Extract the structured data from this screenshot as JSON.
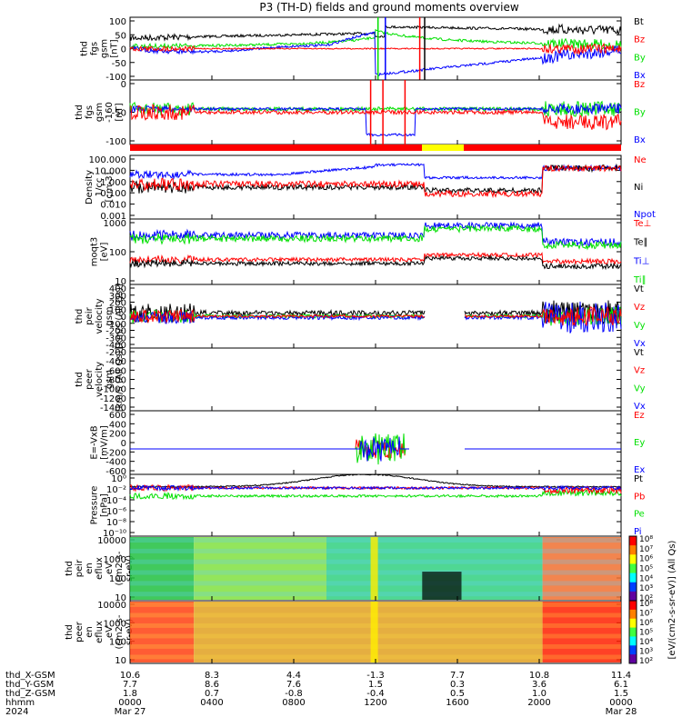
{
  "chart_data": {
    "type": "line",
    "title": "P3 (TH-D) fields and ground moments overview",
    "colors": {
      "black": "#000000",
      "red": "#ff0000",
      "green": "#00e000",
      "blue": "#0000ff",
      "yellow": "#ffff00"
    },
    "x_ticks": [
      "0000",
      "0400",
      "0800",
      "1200",
      "1600",
      "2000",
      "0000"
    ],
    "x_dates": [
      "Mar 27",
      "Mar 28"
    ],
    "row_labels": [
      "thd_X-GSM",
      "thd_Y-GSM",
      "thd_Z-GSM",
      "hhmm",
      "2024"
    ],
    "row_values": [
      [
        "10.6",
        "8.3",
        "4.4",
        "-1.3",
        "7.7",
        "10.8",
        "11.4"
      ],
      [
        "7.7",
        "8.6",
        "7.6",
        "1.5",
        "0.3",
        "3.6",
        "6.1"
      ],
      [
        "1.8",
        "0.7",
        "-0.8",
        "-0.4",
        "0.5",
        "1.0",
        "1.5"
      ]
    ],
    "panels": [
      {
        "ylabel": [
          "thd",
          "fgs",
          "gsm",
          "[nT]"
        ],
        "yticks": [
          "100",
          "50",
          "0",
          "-50",
          "-100"
        ],
        "ylim": [
          -100,
          100
        ],
        "legend": [
          {
            "text": "Bt",
            "color": "black"
          },
          {
            "text": "Bz",
            "color": "red"
          },
          {
            "text": "By",
            "color": "green"
          },
          {
            "text": "Bx",
            "color": "blue"
          }
        ]
      },
      {
        "ylabel": [
          "thd",
          "fgs",
          "gsm",
          "-160",
          "[nT]"
        ],
        "yticks": [
          "0",
          "-50",
          "-100"
        ],
        "ylim": [
          -130,
          30
        ],
        "legend": [
          {
            "text": "Bz",
            "color": "red"
          },
          {
            "text": "By",
            "color": "green"
          },
          {
            "text": "Bx",
            "color": "blue"
          }
        ]
      },
      {
        "ylabel": [
          "Density",
          "1/cc",
          "[cm-3]"
        ],
        "yticks": [
          "100.000",
          "10.000",
          "1.000",
          "0.100",
          "0.010",
          "0.001"
        ],
        "ylim": [
          0.0005,
          300
        ],
        "log": true,
        "legend": [
          {
            "text": "Ne",
            "color": "red"
          },
          {
            "text": "Ni",
            "color": "black"
          },
          {
            "text": "Npot",
            "color": "blue"
          }
        ]
      },
      {
        "ylabel": [
          "moqt3",
          "[eV]"
        ],
        "yticks": [
          "1000",
          "100",
          "10"
        ],
        "ylim": [
          5,
          5000
        ],
        "log": true,
        "legend": [
          {
            "text": "Te⊥",
            "color": "red"
          },
          {
            "text": "Te∥",
            "color": "black"
          },
          {
            "text": "Ti⊥",
            "color": "blue"
          },
          {
            "text": "Ti∥",
            "color": "green"
          }
        ]
      },
      {
        "ylabel": [
          "thd",
          "peir",
          "velocity",
          "gsm",
          "[km/s (All Qs)]"
        ],
        "yticks": [
          "400",
          "300",
          "200",
          "100",
          "0",
          "-100",
          "-200",
          "-300",
          "-400"
        ],
        "ylim": [
          -400,
          450
        ],
        "legend": [
          {
            "text": "Vt",
            "color": "black"
          },
          {
            "text": "Vz",
            "color": "red"
          },
          {
            "text": "Vy",
            "color": "green"
          },
          {
            "text": "Vx",
            "color": "blue"
          }
        ]
      },
      {
        "ylabel": [
          "thd",
          "peer",
          "velocity",
          "gsm",
          "[km/s (All Qs)]"
        ],
        "yticks": [
          "-200",
          "-400",
          "-600",
          "-800",
          "-1000",
          "-1200",
          "-1400"
        ],
        "ylim": [
          -1500,
          -100
        ],
        "legend": [
          {
            "text": "Vt",
            "color": "black"
          },
          {
            "text": "Vz",
            "color": "red"
          },
          {
            "text": "Vy",
            "color": "green"
          },
          {
            "text": "Vx",
            "color": "blue"
          }
        ]
      },
      {
        "ylabel": [
          "E=-VxB",
          "[mV/m]"
        ],
        "yticks": [
          "600",
          "400",
          "200",
          "0",
          "-200",
          "-400",
          "-600"
        ],
        "ylim": [
          -650,
          650
        ],
        "legend": [
          {
            "text": "Ez",
            "color": "red"
          },
          {
            "text": "Ey",
            "color": "green"
          },
          {
            "text": "Ex",
            "color": "blue"
          }
        ]
      },
      {
        "ylabel": [
          "Pressure",
          "[nPa]"
        ],
        "yticks": [
          "10⁰",
          "10⁻²",
          "10⁻⁴",
          "10⁻⁶",
          "10⁻⁸",
          "10⁻¹⁰"
        ],
        "ylim": [
          -11,
          1
        ],
        "log": true,
        "legend": [
          {
            "text": "Pt",
            "color": "black"
          },
          {
            "text": "Pb",
            "color": "red"
          },
          {
            "text": "Pe",
            "color": "green"
          },
          {
            "text": "Pi",
            "color": "blue"
          }
        ]
      },
      {
        "ylabel": [
          "thd",
          "peir",
          "en",
          "eflux",
          "eV",
          "(cm2-s-",
          "sr-eV)"
        ],
        "yticks": [
          "10000",
          "1000",
          "100",
          "10"
        ],
        "ylim": [
          5,
          30000
        ],
        "log": true,
        "spectrogram": true
      },
      {
        "ylabel": [
          "thd",
          "peer",
          "en",
          "eflux",
          "eV",
          "(cm2-s-",
          "sr-eV)"
        ],
        "yticks": [
          "10000",
          "1000",
          "100",
          "10"
        ],
        "ylim": [
          5,
          30000
        ],
        "log": true,
        "spectrogram": true
      }
    ],
    "colorbar": {
      "ticks": [
        "10⁸",
        "10⁷",
        "10⁶",
        "10⁵",
        "10⁴",
        "10³",
        "10²"
      ],
      "label": "[eV/(cm2-s-sr-eV)] (All Qs)"
    }
  }
}
